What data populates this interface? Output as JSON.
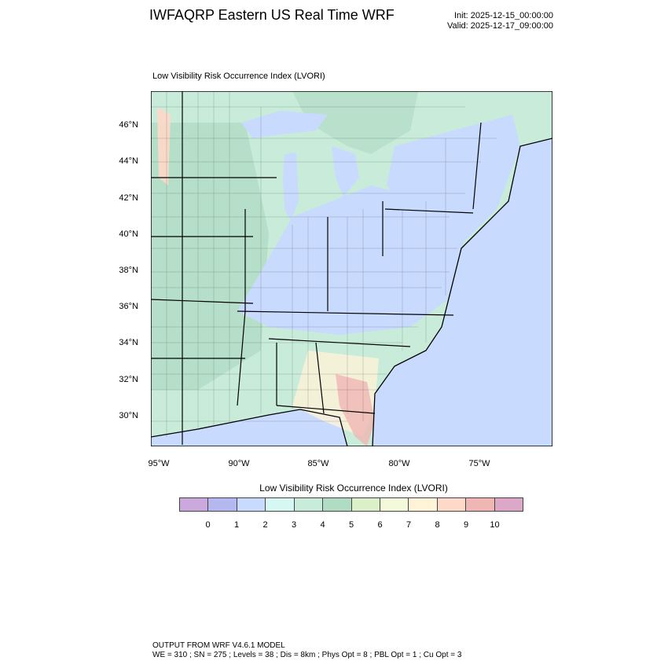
{
  "header": {
    "title": "IWFAQRP Eastern US Real Time WRF",
    "init": "Init: 2025-12-15_00:00:00",
    "valid": "Valid: 2025-12-17_09:00:00"
  },
  "plot": {
    "subtitle": "Low Visibility Risk Occurrence Index   (LVORI)",
    "lat_labels": [
      "46°N",
      "44°N",
      "42°N",
      "40°N",
      "38°N",
      "36°N",
      "34°N",
      "32°N",
      "30°N"
    ],
    "lon_labels": [
      "95°W",
      "90°W",
      "85°W",
      "80°W",
      "75°W"
    ]
  },
  "colorbar": {
    "title": "Low Visibility Risk Occurrence Index  (LVORI)",
    "labels": [
      "0",
      "1",
      "2",
      "3",
      "4",
      "5",
      "6",
      "7",
      "8",
      "9",
      "10"
    ],
    "colors": [
      "#cba9dc",
      "#b4b8ee",
      "#c8dafd",
      "#d7f8f2",
      "#c8ecd9",
      "#b1dcc4",
      "#dbefc9",
      "#f3fadb",
      "#fff3d8",
      "#fed8c8",
      "#f0b6b3",
      "#dca8c8"
    ]
  },
  "footer": {
    "line1": "OUTPUT FROM WRF V4.6.1 MODEL",
    "line2": "WE = 310 ; SN = 275 ; Levels = 38 ; Dis = 8km ; Phys Opt = 8 ; PBL Opt = 1 ; Cu Opt = 3"
  }
}
